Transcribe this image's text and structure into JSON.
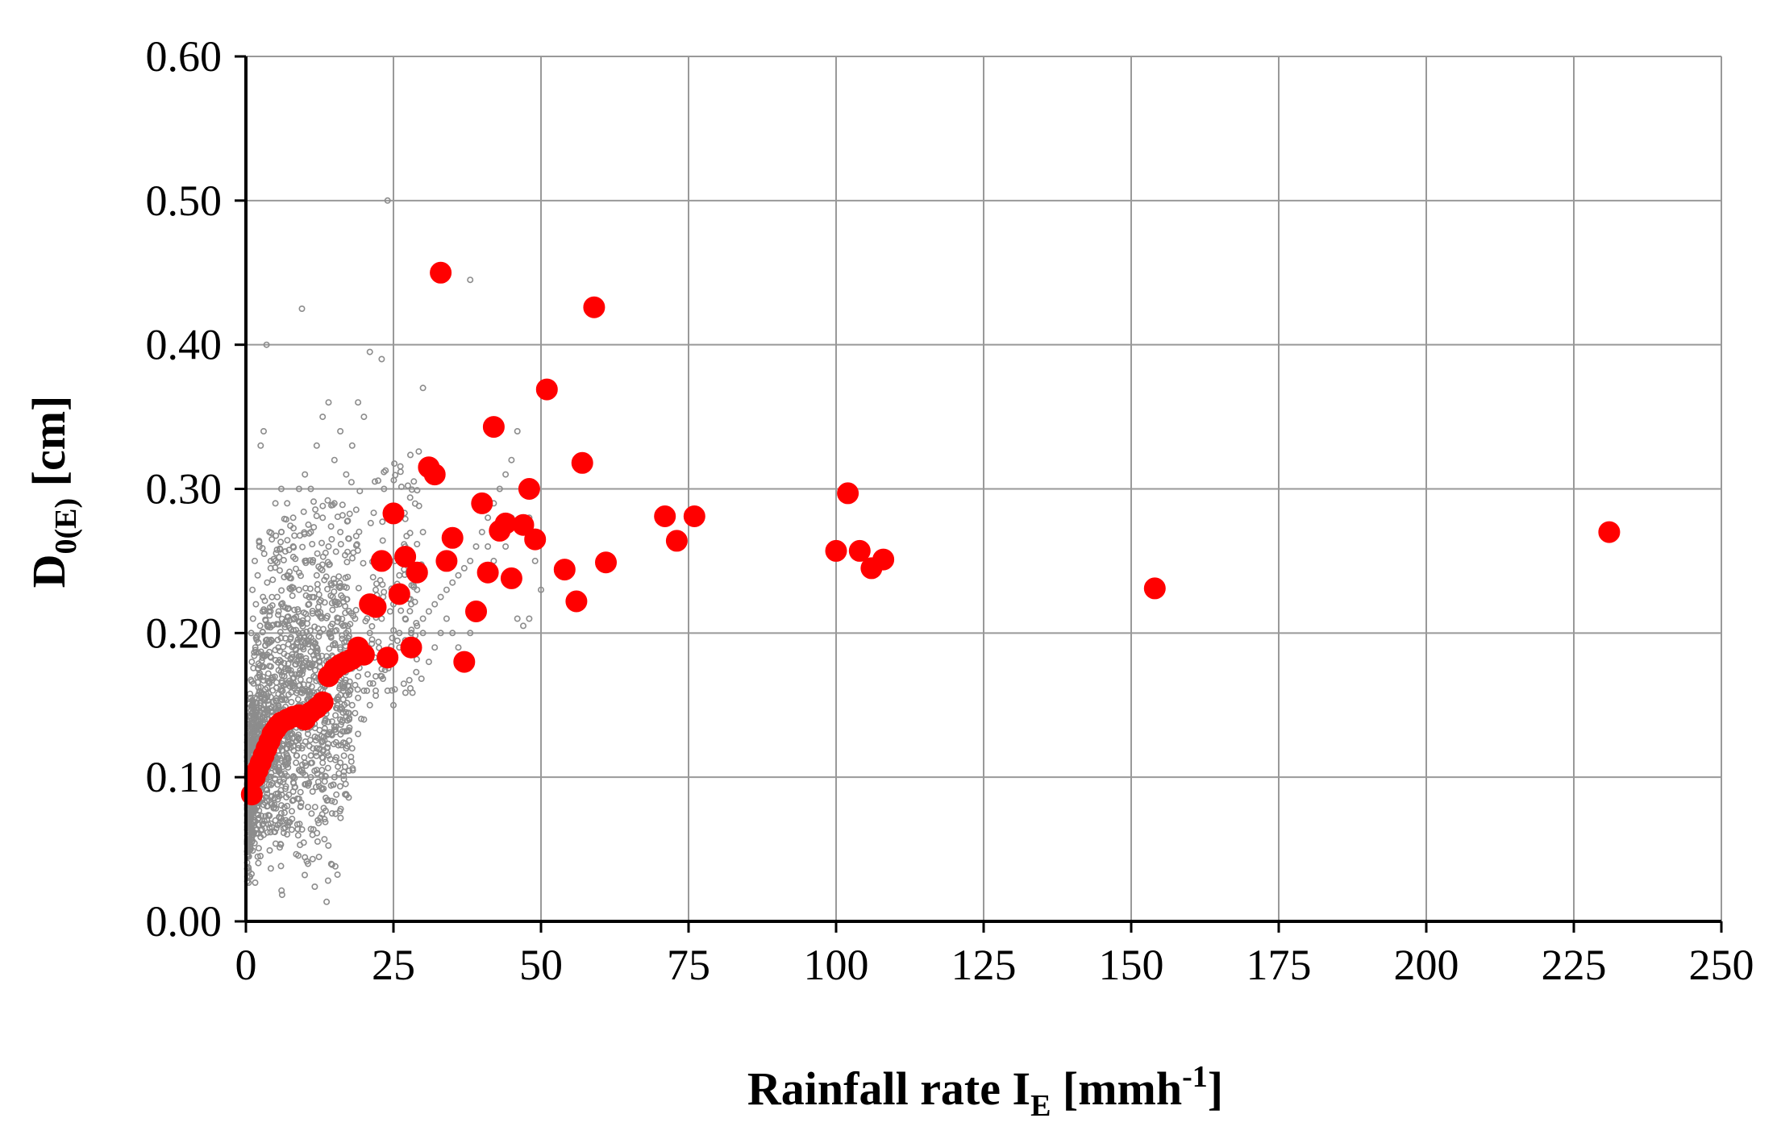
{
  "chart_data": {
    "type": "scatter",
    "title": "",
    "xlabel": {
      "main": "Rainfall rate I",
      "sub": "E",
      "unit_open": " [mmh",
      "sup": "-1",
      "unit_close": "]"
    },
    "ylabel": {
      "main": "D",
      "sub": "0(E)",
      "unit": " [cm]"
    },
    "xlim": [
      0,
      250
    ],
    "ylim": [
      0,
      0.6
    ],
    "xticks": [
      "0",
      "25",
      "50",
      "75",
      "100",
      "125",
      "150",
      "175",
      "200",
      "225",
      "250"
    ],
    "yticks": [
      "0.00",
      "0.10",
      "0.20",
      "0.30",
      "0.40",
      "0.50",
      "0.60"
    ],
    "grid": true,
    "legend": "none",
    "colors": {
      "highlight": "#ff0000",
      "background_points": "#8c8c8c",
      "grid": "#999999",
      "axis": "#000000"
    },
    "series": [
      {
        "marker": "open-small-circle",
        "color": "#8c8c8c",
        "points": [
          [
            0.5,
            0.045
          ],
          [
            0.8,
            0.05
          ],
          [
            1,
            0.055
          ],
          [
            1.2,
            0.06
          ],
          [
            0.6,
            0.065
          ],
          [
            1.5,
            0.07
          ],
          [
            0.9,
            0.075
          ],
          [
            2,
            0.08
          ],
          [
            1.1,
            0.085
          ],
          [
            2.5,
            0.09
          ],
          [
            0.7,
            0.095
          ],
          [
            3,
            0.1
          ],
          [
            1.4,
            0.105
          ],
          [
            3.5,
            0.11
          ],
          [
            2.2,
            0.115
          ],
          [
            4,
            0.12
          ],
          [
            1.8,
            0.125
          ],
          [
            4.5,
            0.13
          ],
          [
            2.6,
            0.135
          ],
          [
            5,
            0.14
          ],
          [
            3.2,
            0.145
          ],
          [
            5.5,
            0.15
          ],
          [
            0.8,
            0.155
          ],
          [
            6,
            0.16
          ],
          [
            1.3,
            0.165
          ],
          [
            6.5,
            0.17
          ],
          [
            2.1,
            0.175
          ],
          [
            1,
            0.18
          ],
          [
            2.8,
            0.185
          ],
          [
            1.6,
            0.19
          ],
          [
            3.4,
            0.195
          ],
          [
            0.9,
            0.2
          ],
          [
            2.4,
            0.205
          ],
          [
            1.2,
            0.21
          ],
          [
            3.9,
            0.215
          ],
          [
            1.7,
            0.22
          ],
          [
            2.9,
            0.225
          ],
          [
            1.1,
            0.23
          ],
          [
            3.6,
            0.235
          ],
          [
            2,
            0.24
          ],
          [
            4.2,
            0.245
          ],
          [
            1.5,
            0.25
          ],
          [
            3.1,
            0.255
          ],
          [
            2.3,
            0.26
          ],
          [
            4.4,
            0.265
          ],
          [
            7,
            0.12
          ],
          [
            7.5,
            0.13
          ],
          [
            8,
            0.14
          ],
          [
            8.5,
            0.11
          ],
          [
            9,
            0.15
          ],
          [
            9.5,
            0.12
          ],
          [
            10,
            0.16
          ],
          [
            10.5,
            0.13
          ],
          [
            11,
            0.14
          ],
          [
            11.5,
            0.17
          ],
          [
            12,
            0.15
          ],
          [
            12.5,
            0.12
          ],
          [
            13,
            0.16
          ],
          [
            13.5,
            0.14
          ],
          [
            14,
            0.18
          ],
          [
            14.5,
            0.13
          ],
          [
            15,
            0.17
          ],
          [
            15.5,
            0.15
          ],
          [
            16,
            0.19
          ],
          [
            16.5,
            0.16
          ],
          [
            17,
            0.2
          ],
          [
            17.5,
            0.14
          ],
          [
            18,
            0.18
          ],
          [
            18.5,
            0.21
          ],
          [
            19,
            0.17
          ],
          [
            19.5,
            0.19
          ],
          [
            20,
            0.22
          ],
          [
            20.5,
            0.16
          ],
          [
            21,
            0.2
          ],
          [
            22,
            0.23
          ],
          [
            23,
            0.21
          ],
          [
            24,
            0.25
          ],
          [
            25,
            0.22
          ],
          [
            26,
            0.24
          ],
          [
            27,
            0.26
          ],
          [
            28,
            0.2
          ],
          [
            29,
            0.23
          ],
          [
            30,
            0.27
          ],
          [
            6,
            0.22
          ],
          [
            7,
            0.24
          ],
          [
            8,
            0.26
          ],
          [
            9,
            0.23
          ],
          [
            10,
            0.25
          ],
          [
            11,
            0.27
          ],
          [
            12,
            0.24
          ],
          [
            13,
            0.28
          ],
          [
            14,
            0.26
          ],
          [
            15,
            0.29
          ],
          [
            16,
            0.27
          ],
          [
            5,
            0.25
          ],
          [
            6,
            0.27
          ],
          [
            7,
            0.29
          ],
          [
            8,
            0.28
          ],
          [
            9,
            0.3
          ],
          [
            10,
            0.31
          ],
          [
            11,
            0.3
          ],
          [
            12,
            0.33
          ],
          [
            13,
            0.35
          ],
          [
            14,
            0.36
          ],
          [
            15,
            0.32
          ],
          [
            16,
            0.34
          ],
          [
            17,
            0.31
          ],
          [
            18,
            0.33
          ],
          [
            19,
            0.36
          ],
          [
            20,
            0.35
          ],
          [
            4,
            0.27
          ],
          [
            5,
            0.29
          ],
          [
            6,
            0.3
          ],
          [
            3,
            0.34
          ],
          [
            2.5,
            0.33
          ],
          [
            3.5,
            0.4
          ],
          [
            9.5,
            0.425
          ],
          [
            21,
            0.395
          ],
          [
            23,
            0.39
          ],
          [
            24,
            0.5
          ],
          [
            30,
            0.37
          ],
          [
            38,
            0.445
          ],
          [
            8,
            0.1
          ],
          [
            9,
            0.105
          ],
          [
            10,
            0.11
          ],
          [
            11,
            0.115
          ],
          [
            12,
            0.12
          ],
          [
            13,
            0.125
          ],
          [
            14,
            0.13
          ],
          [
            15,
            0.135
          ],
          [
            16,
            0.14
          ],
          [
            17,
            0.145
          ],
          [
            18,
            0.15
          ],
          [
            19,
            0.155
          ],
          [
            20,
            0.16
          ],
          [
            21,
            0.165
          ],
          [
            22,
            0.17
          ],
          [
            23,
            0.175
          ],
          [
            24,
            0.18
          ],
          [
            25,
            0.185
          ],
          [
            26,
            0.19
          ],
          [
            27,
            0.195
          ],
          [
            28,
            0.2
          ],
          [
            29,
            0.205
          ],
          [
            30,
            0.21
          ],
          [
            31,
            0.215
          ],
          [
            32,
            0.22
          ],
          [
            33,
            0.225
          ],
          [
            34,
            0.23
          ],
          [
            35,
            0.235
          ],
          [
            36,
            0.24
          ],
          [
            37,
            0.245
          ],
          [
            38,
            0.25
          ],
          [
            39,
            0.26
          ],
          [
            40,
            0.27
          ],
          [
            41,
            0.28
          ],
          [
            42,
            0.29
          ],
          [
            43,
            0.3
          ],
          [
            44,
            0.31
          ],
          [
            45,
            0.32
          ],
          [
            46,
            0.34
          ],
          [
            47,
            0.3
          ],
          [
            48,
            0.28
          ],
          [
            49,
            0.25
          ],
          [
            50,
            0.23
          ],
          [
            18,
            0.12
          ],
          [
            19,
            0.13
          ],
          [
            20,
            0.14
          ],
          [
            21,
            0.15
          ],
          [
            22,
            0.16
          ],
          [
            23,
            0.17
          ],
          [
            24,
            0.16
          ],
          [
            25,
            0.15
          ],
          [
            15,
            0.1
          ],
          [
            16,
            0.11
          ],
          [
            17,
            0.12
          ],
          [
            26,
            0.2
          ],
          [
            27,
            0.21
          ],
          [
            28,
            0.22
          ],
          [
            29,
            0.19
          ],
          [
            30,
            0.2
          ],
          [
            31,
            0.18
          ],
          [
            32,
            0.19
          ],
          [
            33,
            0.2
          ],
          [
            34,
            0.21
          ],
          [
            35,
            0.2
          ],
          [
            36,
            0.19
          ],
          [
            37,
            0.18
          ],
          [
            38,
            0.2
          ],
          [
            39,
            0.22
          ],
          [
            40,
            0.24
          ],
          [
            41,
            0.26
          ],
          [
            42,
            0.25
          ],
          [
            43,
            0.27
          ],
          [
            44,
            0.26
          ],
          [
            45,
            0.28
          ],
          [
            46,
            0.21
          ],
          [
            47,
            0.205
          ],
          [
            48,
            0.21
          ],
          [
            7,
            0.08
          ],
          [
            8,
            0.09
          ],
          [
            9,
            0.085
          ],
          [
            10,
            0.095
          ],
          [
            11,
            0.1
          ],
          [
            12,
            0.105
          ],
          [
            13,
            0.11
          ],
          [
            14,
            0.115
          ],
          [
            3,
            0.06
          ],
          [
            4,
            0.065
          ],
          [
            5,
            0.07
          ],
          [
            6,
            0.075
          ]
        ]
      },
      {
        "marker": "filled-circle",
        "color": "#ff0000",
        "points": [
          [
            1,
            0.088
          ],
          [
            1.5,
            0.1
          ],
          [
            2,
            0.105
          ],
          [
            2.5,
            0.11
          ],
          [
            3,
            0.115
          ],
          [
            3.5,
            0.12
          ],
          [
            4,
            0.125
          ],
          [
            4.5,
            0.13
          ],
          [
            5,
            0.133
          ],
          [
            5.5,
            0.136
          ],
          [
            6,
            0.138
          ],
          [
            7,
            0.14
          ],
          [
            8,
            0.142
          ],
          [
            9,
            0.143
          ],
          [
            10,
            0.14
          ],
          [
            11,
            0.145
          ],
          [
            12,
            0.148
          ],
          [
            13,
            0.152
          ],
          [
            14,
            0.17
          ],
          [
            15,
            0.175
          ],
          [
            16,
            0.178
          ],
          [
            17,
            0.18
          ],
          [
            18,
            0.182
          ],
          [
            19,
            0.19
          ],
          [
            20,
            0.185
          ],
          [
            21,
            0.22
          ],
          [
            22,
            0.218
          ],
          [
            23,
            0.25
          ],
          [
            24,
            0.183
          ],
          [
            25,
            0.283
          ],
          [
            26,
            0.227
          ],
          [
            27,
            0.253
          ],
          [
            28,
            0.19
          ],
          [
            29,
            0.242
          ],
          [
            31,
            0.315
          ],
          [
            32,
            0.31
          ],
          [
            33,
            0.45
          ],
          [
            34,
            0.25
          ],
          [
            35,
            0.266
          ],
          [
            37,
            0.18
          ],
          [
            39,
            0.215
          ],
          [
            40,
            0.29
          ],
          [
            41,
            0.242
          ],
          [
            42,
            0.343
          ],
          [
            43,
            0.271
          ],
          [
            44,
            0.276
          ],
          [
            45,
            0.238
          ],
          [
            47,
            0.275
          ],
          [
            48,
            0.3
          ],
          [
            49,
            0.265
          ],
          [
            51,
            0.369
          ],
          [
            54,
            0.244
          ],
          [
            56,
            0.222
          ],
          [
            57,
            0.318
          ],
          [
            59,
            0.426
          ],
          [
            61,
            0.249
          ],
          [
            71,
            0.281
          ],
          [
            73,
            0.264
          ],
          [
            76,
            0.281
          ],
          [
            100,
            0.257
          ],
          [
            102,
            0.297
          ],
          [
            104,
            0.257
          ],
          [
            106,
            0.245
          ],
          [
            108,
            0.251
          ],
          [
            154,
            0.231
          ],
          [
            231,
            0.27
          ]
        ]
      }
    ]
  }
}
